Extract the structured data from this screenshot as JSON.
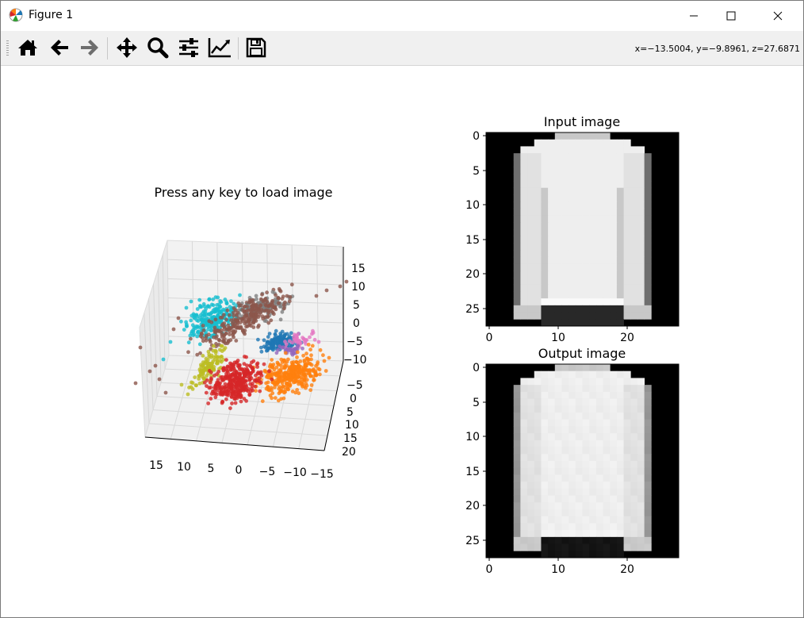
{
  "window": {
    "title": "Figure 1",
    "controls": [
      "minimize",
      "maximize",
      "close"
    ]
  },
  "toolbar": {
    "buttons": [
      {
        "name": "home",
        "icon": "home-icon"
      },
      {
        "name": "back",
        "icon": "arrow-left-icon"
      },
      {
        "name": "forward",
        "icon": "arrow-right-icon"
      },
      {
        "name": "pan",
        "icon": "move-icon"
      },
      {
        "name": "zoom",
        "icon": "zoom-icon"
      },
      {
        "name": "subplots",
        "icon": "sliders-icon"
      },
      {
        "name": "customize",
        "icon": "line-chart-icon"
      },
      {
        "name": "save",
        "icon": "save-icon"
      }
    ],
    "coords": "x=−13.5004, y=−9.8961, z=27.6871"
  },
  "figure": {
    "scatter": {
      "title": "Press any key to load image",
      "x_ticks": [
        "15",
        "10",
        "5",
        "0",
        "−5",
        "−10",
        "−15"
      ],
      "y_ticks": [
        "−5",
        "0",
        "5",
        "10",
        "15",
        "20"
      ],
      "z_ticks": [
        "15",
        "10",
        "5",
        "0",
        "−5",
        "−10"
      ],
      "cluster_colors": {
        "cyan": "#17becf",
        "brown": "#8c564b",
        "olive": "#bcbd22",
        "red": "#d62728",
        "orange": "#ff7f0e",
        "blue": "#1f77b4",
        "pink": "#e377c2",
        "purple": "#9467bd",
        "gray": "#7f7f7f"
      }
    },
    "input_image": {
      "title": "Input image",
      "y_ticks": [
        "0",
        "5",
        "10",
        "15",
        "20",
        "25"
      ],
      "x_ticks": [
        "0",
        "10",
        "20"
      ]
    },
    "output_image": {
      "title": "Output image",
      "y_ticks": [
        "0",
        "5",
        "10",
        "15",
        "20",
        "25"
      ],
      "x_ticks": [
        "0",
        "10",
        "20"
      ]
    }
  }
}
